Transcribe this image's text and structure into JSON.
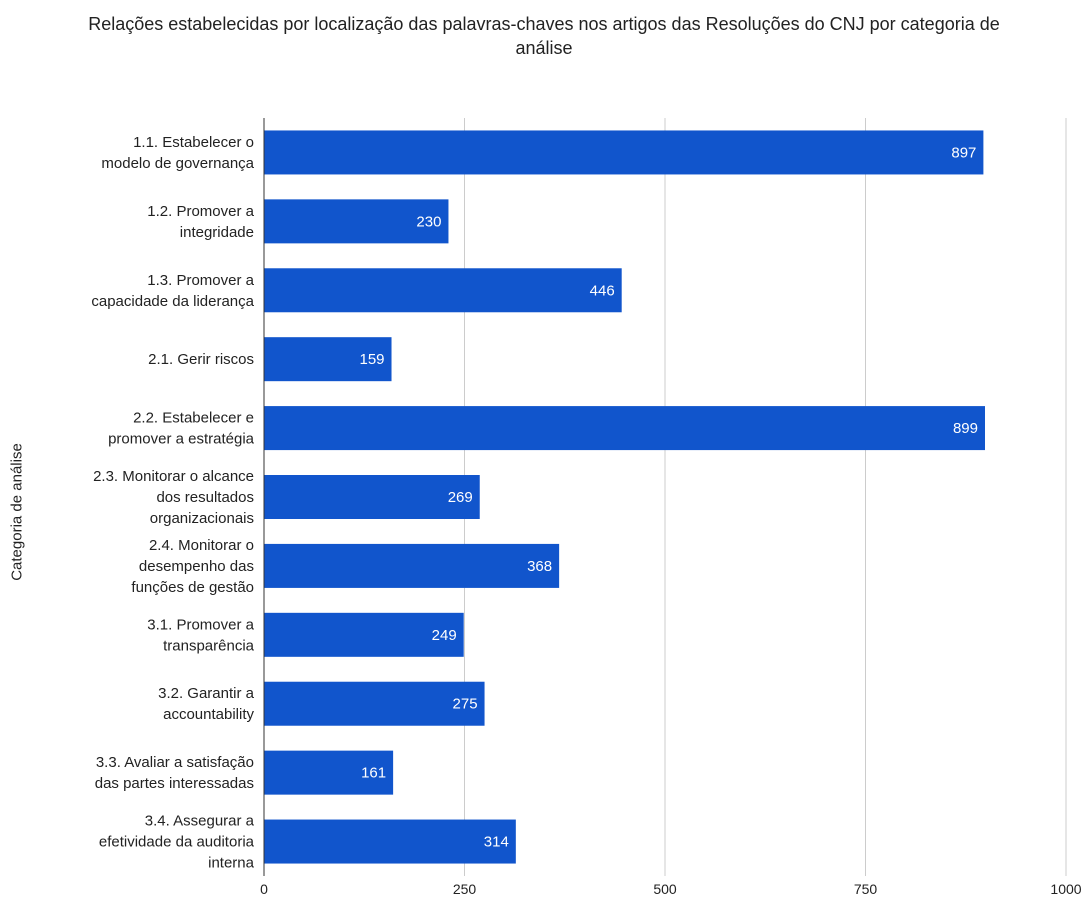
{
  "chart_data": {
    "type": "bar",
    "orientation": "horizontal",
    "title_lines": [
      "Relações estabelecidas por localização das palavras-chaves nos artigos das Resoluções do CNJ por categoria de",
      "análise"
    ],
    "ylabel": "Categoria de análise",
    "xlabel": "",
    "xlim": [
      0,
      1000
    ],
    "xticks": [
      "0",
      "250",
      "500",
      "750",
      "1000"
    ],
    "grid": "vertical",
    "bar_color": "#1155cc",
    "categories": [
      [
        "1.1. Estabelecer o",
        "modelo de governança"
      ],
      [
        "1.2. Promover a",
        "integridade"
      ],
      [
        "1.3. Promover a",
        "capacidade da liderança"
      ],
      [
        "2.1. Gerir riscos"
      ],
      [
        "2.2. Estabelecer e",
        "promover a estratégia"
      ],
      [
        "2.3. Monitorar o alcance",
        "dos resultados",
        "organizacionais"
      ],
      [
        "2.4. Monitorar o",
        "desempenho das",
        "funções de gestão"
      ],
      [
        "3.1. Promover a",
        "transparência"
      ],
      [
        "3.2. Garantir a",
        "accountability"
      ],
      [
        "3.3. Avaliar a satisfação",
        "das partes interessadas"
      ],
      [
        "3.4. Assegurar a",
        "efetividade da auditoria",
        "interna"
      ]
    ],
    "values": [
      897,
      230,
      446,
      159,
      899,
      269,
      368,
      249,
      275,
      161,
      314
    ]
  }
}
